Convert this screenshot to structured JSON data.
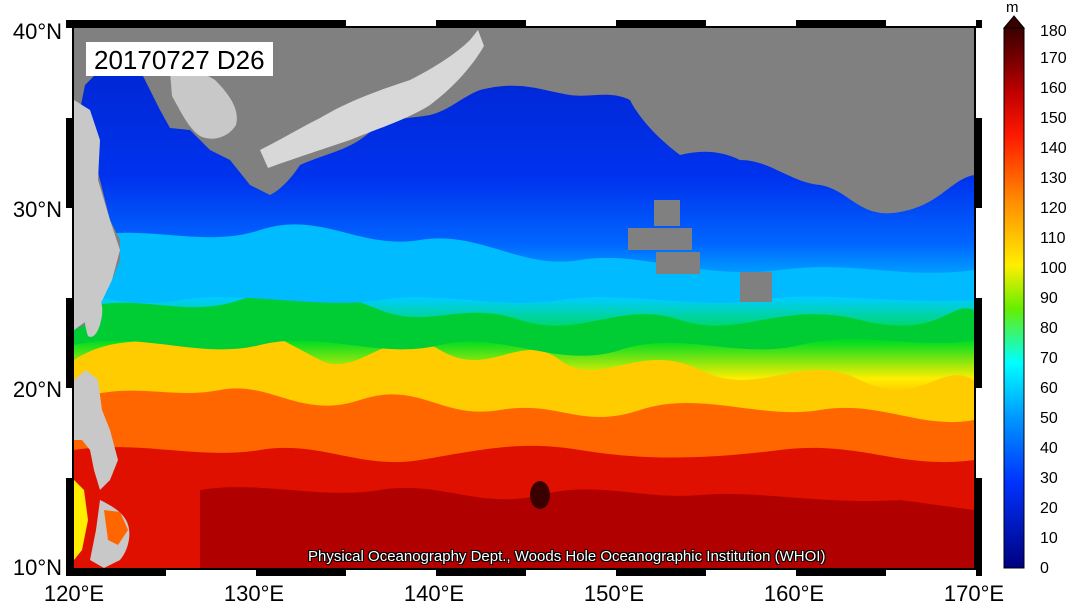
{
  "map": {
    "date_label": "20170727 D26",
    "credit": "Physical Oceanography Dept., Woods Hole Oceanographic Institution (WHOI)",
    "lat_labels": [
      "40°N",
      "30°N",
      "20°N",
      "10°N"
    ],
    "lon_labels": [
      "120°E",
      "130°E",
      "140°E",
      "150°E",
      "160°E",
      "170°E"
    ],
    "extent": {
      "lon_min": 120,
      "lon_max": 170,
      "lat_min": 10,
      "lat_max": 40
    },
    "variable": "D26",
    "land_color": "#808080"
  },
  "colorbar": {
    "unit": "m",
    "ticks": [
      "180",
      "170",
      "160",
      "150",
      "140",
      "130",
      "120",
      "110",
      "100",
      "90",
      "80",
      "70",
      "60",
      "50",
      "40",
      "30",
      "20",
      "10",
      "0"
    ],
    "colors": [
      "#3a0000",
      "#6b0000",
      "#a00000",
      "#c80000",
      "#e60000",
      "#ff1a00",
      "#ff3300",
      "#ff6600",
      "#ff8c00",
      "#ffb400",
      "#ffd700",
      "#ffff00",
      "#b4ff00",
      "#64f000",
      "#00dc00",
      "#00ffff",
      "#00c8ff",
      "#00a0ff",
      "#0078ff",
      "#0050ff",
      "#0032e6",
      "#0014c8",
      "#00008c"
    ]
  }
}
